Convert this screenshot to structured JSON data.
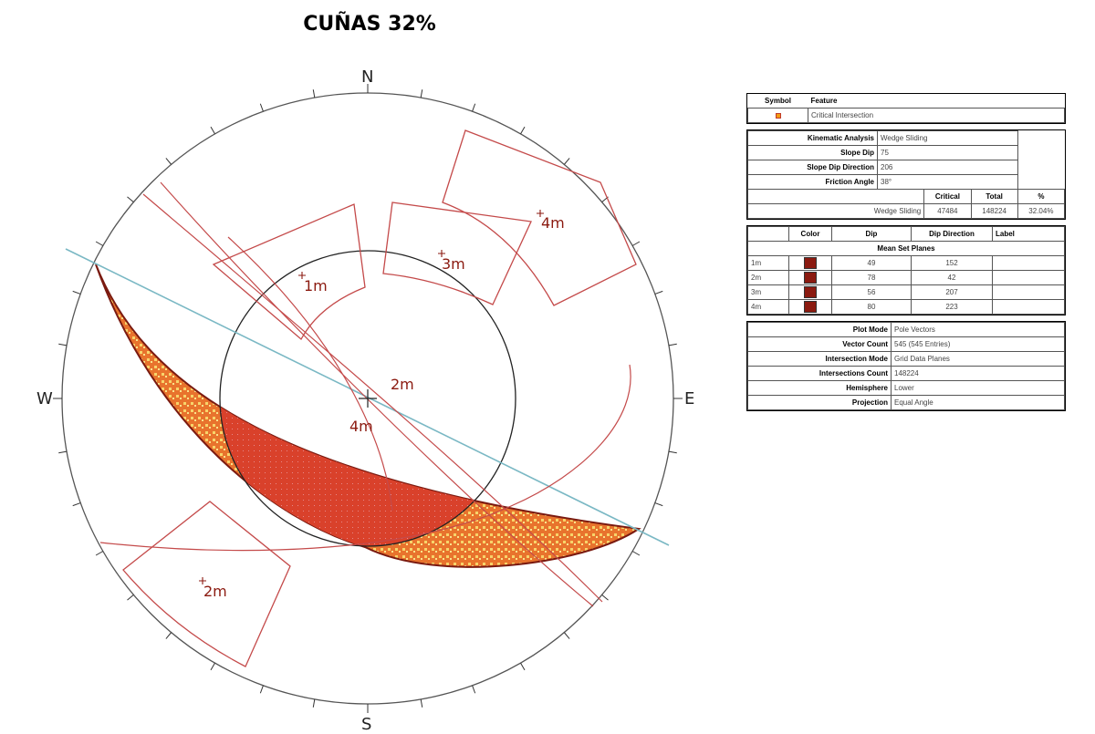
{
  "title": "CUÑAS 32%",
  "compass": {
    "n": "N",
    "s": "S",
    "e": "E",
    "w": "W"
  },
  "pole_labels": [
    "1m",
    "2m",
    "3m",
    "4m"
  ],
  "pole_labels_extra": [
    "2m",
    "4m"
  ],
  "colors": {
    "critical_fill": "#d9412b",
    "critical_zone": "#f08a3e",
    "critical_points": "#f5c04a",
    "set_color": "#8b1a10",
    "slope_line": "#7ab8c4",
    "plane_line": "#c44a4a"
  },
  "legend": {
    "symbol_header": "Symbol",
    "feature_header": "Feature",
    "feature": "Critical Intersection",
    "kinematic": [
      {
        "label": "Kinematic Analysis",
        "value": "Wedge Sliding"
      },
      {
        "label": "Slope Dip",
        "value": "75"
      },
      {
        "label": "Slope Dip Direction",
        "value": "206"
      },
      {
        "label": "Friction Angle",
        "value": "38°"
      }
    ],
    "counts_headers": [
      "Critical",
      "Total",
      "%"
    ],
    "counts": {
      "label": "Wedge Sliding",
      "critical": "47484",
      "total": "148224",
      "percent": "32.04%"
    },
    "sets_headers": [
      "Color",
      "Dip",
      "Dip Direction",
      "Label"
    ],
    "sets_title": "Mean Set Planes",
    "sets": [
      {
        "id": "1m",
        "dip": "49",
        "dipdir": "152"
      },
      {
        "id": "2m",
        "dip": "78",
        "dipdir": "42"
      },
      {
        "id": "3m",
        "dip": "56",
        "dipdir": "207"
      },
      {
        "id": "4m",
        "dip": "80",
        "dipdir": "223"
      }
    ],
    "settings": [
      {
        "label": "Plot Mode",
        "value": "Pole Vectors"
      },
      {
        "label": "Vector Count",
        "value": "545 (545 Entries)"
      },
      {
        "label": "Intersection Mode",
        "value": "Grid Data Planes"
      },
      {
        "label": "Intersections Count",
        "value": "148224"
      },
      {
        "label": "Hemisphere",
        "value": "Lower"
      },
      {
        "label": "Projection",
        "value": "Equal Angle"
      }
    ]
  }
}
